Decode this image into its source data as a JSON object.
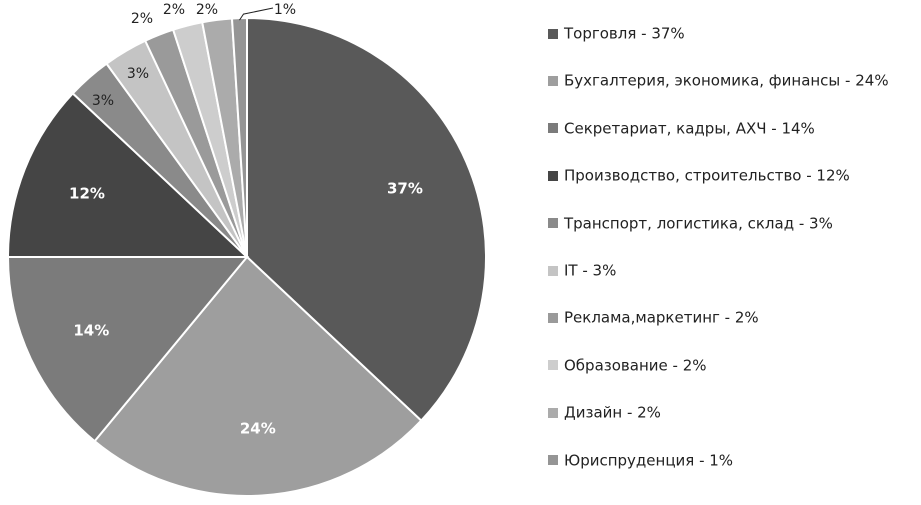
{
  "chart_data": {
    "type": "pie",
    "title": "",
    "legend_position": "right",
    "slices": [
      {
        "label": "Торговля - 37%",
        "value": 37,
        "value_label": "37%",
        "color": "#595959"
      },
      {
        "label": "Бухгалтерия, экономика, финансы - 24%",
        "value": 24,
        "value_label": "24%",
        "color": "#9e9e9e"
      },
      {
        "label": "Секретариат, кадры, АХЧ - 14%",
        "value": 14,
        "value_label": "14%",
        "color": "#7b7b7b"
      },
      {
        "label": "Производство, строительство - 12%",
        "value": 12,
        "value_label": "12%",
        "color": "#454545"
      },
      {
        "label": "Транспорт, логистика, склад - 3%",
        "value": 3,
        "value_label": "3%",
        "color": "#8a8a8a"
      },
      {
        "label": "IT - 3%",
        "value": 3,
        "value_label": "3%",
        "color": "#c4c4c4"
      },
      {
        "label": "Реклама,маркетинг - 2%",
        "value": 2,
        "value_label": "2%",
        "color": "#9a9a9a"
      },
      {
        "label": "Образование - 2%",
        "value": 2,
        "value_label": "2%",
        "color": "#cdcdcd"
      },
      {
        "label": "Дизайн - 2%",
        "value": 2,
        "value_label": "2%",
        "color": "#ababab"
      },
      {
        "label": "Юриспруденция - 1%",
        "value": 1,
        "value_label": "1%",
        "color": "#959595"
      }
    ]
  }
}
